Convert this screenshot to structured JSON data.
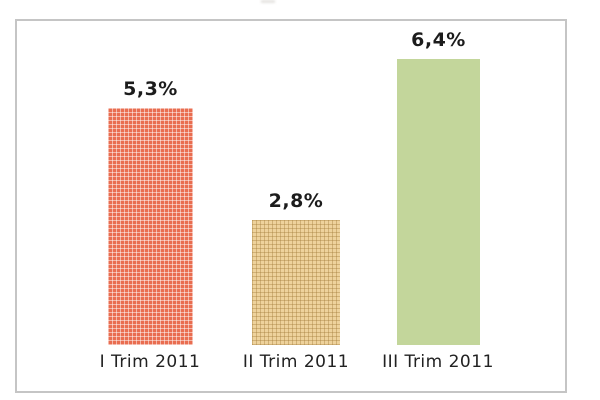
{
  "chart_data": {
    "type": "bar",
    "title": "",
    "xlabel": "",
    "ylabel": "",
    "categories": [
      "I Trim 2011",
      "II Trim 2011",
      "III Trim 2011"
    ],
    "values": [
      5.3,
      2.8,
      6.4
    ],
    "value_labels": [
      "5,3%",
      "2,8%",
      "6,4%"
    ],
    "unit": "%",
    "decimal_separator": ",",
    "ylim": [
      0,
      7.3
    ],
    "grid": false,
    "legend": false,
    "axes_visible": false,
    "bar_fills": [
      "#e96d50",
      "#eed29c",
      "#c3d69b"
    ],
    "bar_patterns": [
      "grid",
      "grid",
      "solid"
    ],
    "bar_pattern_line_colors": [
      "rgba(255,255,255,0.5)",
      "rgba(164,124,58,0.4)",
      "none"
    ],
    "value_label_color": "#1c1c1c",
    "category_label_color": "#222222",
    "frame_border_color": "#c5c5c5"
  }
}
